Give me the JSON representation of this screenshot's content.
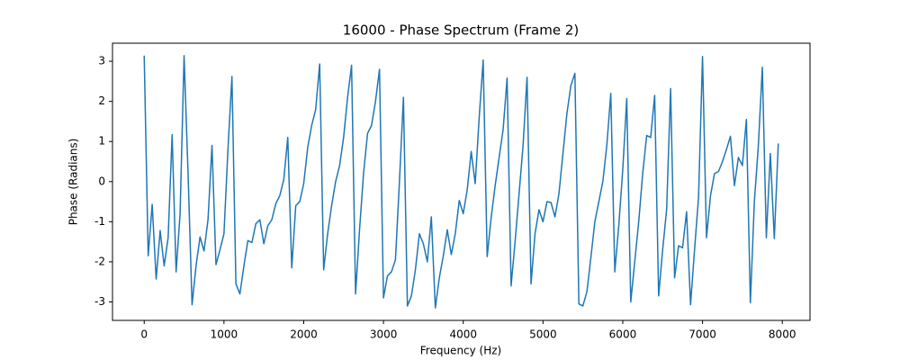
{
  "chart_data": {
    "type": "line",
    "title": "16000 - Phase Spectrum (Frame 2)",
    "x_label": "Frequency (Hz)",
    "y_label": "Phase (Radians)",
    "x": [
      0,
      50,
      100,
      150,
      200,
      250,
      300,
      350,
      400,
      450,
      500,
      550,
      600,
      650,
      700,
      750,
      800,
      850,
      900,
      950,
      1000,
      1050,
      1100,
      1150,
      1200,
      1250,
      1300,
      1350,
      1400,
      1450,
      1500,
      1550,
      1600,
      1650,
      1700,
      1750,
      1800,
      1850,
      1900,
      1950,
      2000,
      2050,
      2100,
      2150,
      2200,
      2250,
      2300,
      2350,
      2400,
      2450,
      2500,
      2550,
      2600,
      2650,
      2700,
      2750,
      2800,
      2850,
      2900,
      2950,
      3000,
      3050,
      3100,
      3150,
      3200,
      3250,
      3300,
      3350,
      3400,
      3450,
      3500,
      3550,
      3600,
      3650,
      3700,
      3750,
      3800,
      3850,
      3900,
      3950,
      4000,
      4050,
      4100,
      4150,
      4200,
      4250,
      4300,
      4350,
      4400,
      4450,
      4500,
      4550,
      4600,
      4650,
      4700,
      4750,
      4800,
      4850,
      4900,
      4950,
      5000,
      5050,
      5100,
      5150,
      5200,
      5250,
      5300,
      5350,
      5400,
      5450,
      5500,
      5550,
      5600,
      5650,
      5700,
      5750,
      5800,
      5850,
      5900,
      5950,
      6000,
      6050,
      6100,
      6150,
      6200,
      6250,
      6300,
      6350,
      6400,
      6450,
      6500,
      6550,
      6600,
      6650,
      6700,
      6750,
      6800,
      6850,
      6900,
      6950,
      7000,
      7050,
      7100,
      7150,
      7200,
      7250,
      7300,
      7350,
      7400,
      7450,
      7500,
      7550,
      7600,
      7650,
      7700,
      7750,
      7800,
      7850,
      7900,
      7950
    ],
    "series": [
      {
        "color": "#1f77b4",
        "values": [
          3.14,
          -1.85,
          -0.57,
          -2.43,
          -1.22,
          -2.1,
          -1.4,
          1.17,
          -2.25,
          -0.8,
          3.14,
          0.2,
          -3.07,
          -2.1,
          -1.38,
          -1.73,
          -0.95,
          0.9,
          -2.07,
          -1.7,
          -1.3,
          0.8,
          2.62,
          -2.55,
          -2.8,
          -2.1,
          -1.47,
          -1.52,
          -1.05,
          -0.95,
          -1.55,
          -1.1,
          -0.95,
          -0.55,
          -0.35,
          0.05,
          1.1,
          -2.15,
          -0.6,
          -0.5,
          -0.05,
          0.85,
          1.4,
          1.8,
          2.93,
          -2.2,
          -1.3,
          -0.6,
          0.0,
          0.4,
          1.1,
          2.1,
          2.9,
          -2.8,
          -1.2,
          0.2,
          1.2,
          1.4,
          2.0,
          2.8,
          -2.9,
          -2.35,
          -2.25,
          -1.95,
          0.0,
          2.1,
          -3.1,
          -2.85,
          -2.2,
          -1.3,
          -1.55,
          -2.0,
          -0.88,
          -3.15,
          -2.4,
          -1.85,
          -1.2,
          -1.82,
          -1.3,
          -0.47,
          -0.8,
          -0.2,
          0.75,
          -0.05,
          1.6,
          3.03,
          -1.87,
          -0.9,
          -0.1,
          0.6,
          1.3,
          2.58,
          -2.6,
          -1.5,
          -0.3,
          0.9,
          2.6,
          -2.55,
          -1.3,
          -0.7,
          -1.0,
          -0.5,
          -0.52,
          -0.88,
          -0.3,
          0.7,
          1.7,
          2.4,
          2.7,
          -3.05,
          -3.1,
          -2.75,
          -1.9,
          -1.0,
          -0.5,
          0.0,
          0.9,
          2.2,
          -2.25,
          -1.1,
          0.3,
          2.07,
          -3.0,
          -2.0,
          -1.0,
          0.2,
          1.15,
          1.1,
          2.15,
          -2.85,
          -1.7,
          -0.7,
          2.32,
          -2.4,
          -1.6,
          -1.65,
          -0.75,
          -3.07,
          -1.7,
          -0.4,
          3.12,
          -1.4,
          -0.35,
          0.2,
          0.25,
          0.5,
          0.8,
          1.13,
          -0.1,
          0.6,
          0.4,
          1.55,
          -3.02,
          -0.5,
          0.9,
          2.85,
          -1.4,
          0.7,
          -1.42,
          0.95
        ]
      }
    ],
    "xlim": [
      -397.5,
      8347.5
    ],
    "xticks": [
      0,
      1000,
      2000,
      3000,
      4000,
      5000,
      6000,
      7000,
      8000
    ],
    "ylim": [
      -3.46,
      3.45
    ],
    "yticks": [
      -3,
      -2,
      -1,
      0,
      1,
      2,
      3
    ]
  }
}
